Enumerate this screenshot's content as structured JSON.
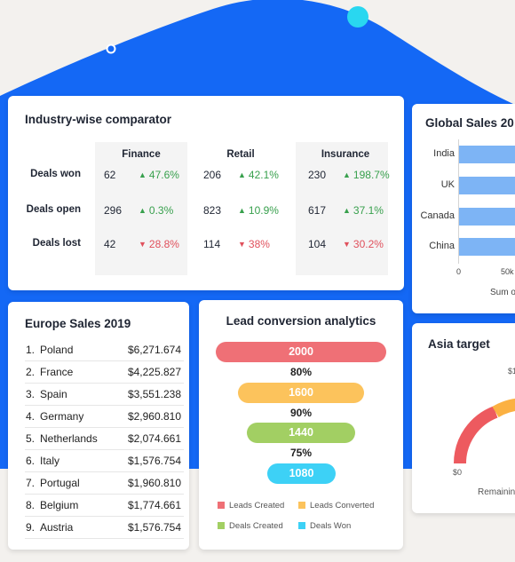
{
  "colors": {
    "wave": "#1468f5",
    "accent_dot": "#29d7f0",
    "up": "#38a04d",
    "down": "#e0505c",
    "bar": "#7db4f5",
    "leads_created": "#ef7076",
    "leads_converted": "#fcc35c",
    "deals_created": "#a2cf63",
    "deals_won": "#3dd1f6",
    "gauge_done": "#ed5a5f",
    "gauge_rest": "#fbb142"
  },
  "industry": {
    "title": "Industry-wise comparator",
    "columns": [
      "Finance",
      "Retail",
      "Insurance"
    ],
    "rows": [
      {
        "label": "Deals won",
        "cells": [
          {
            "value": "62",
            "change": "47.6%",
            "dir": "up",
            "arrow": "▲"
          },
          {
            "value": "206",
            "change": "42.1%",
            "dir": "up",
            "arrow": "▲"
          },
          {
            "value": "230",
            "change": "198.7%",
            "dir": "up",
            "arrow": "▲"
          }
        ]
      },
      {
        "label": "Deals open",
        "cells": [
          {
            "value": "296",
            "change": "0.3%",
            "dir": "up",
            "arrow": "▲"
          },
          {
            "value": "823",
            "change": "10.9%",
            "dir": "up",
            "arrow": "▲"
          },
          {
            "value": "617",
            "change": "37.1%",
            "dir": "up",
            "arrow": "▲"
          }
        ]
      },
      {
        "label": "Deals lost",
        "cells": [
          {
            "value": "42",
            "change": "28.8%",
            "dir": "down",
            "arrow": "▼"
          },
          {
            "value": "114",
            "change": "38%",
            "dir": "down",
            "arrow": "▼"
          },
          {
            "value": "104",
            "change": "30.2%",
            "dir": "down",
            "arrow": "▼"
          }
        ]
      }
    ]
  },
  "global_sales": {
    "title": "Global Sales 20",
    "countries": [
      "India",
      "UK",
      "Canada",
      "China"
    ],
    "ticks": [
      "0",
      "50k"
    ],
    "xlabel": "Sum o"
  },
  "europe": {
    "title": "Europe Sales 2019",
    "rows": [
      {
        "rank": "1.",
        "name": "Poland",
        "value": "$6,271.674"
      },
      {
        "rank": "2.",
        "name": "France",
        "value": "$4,225.827"
      },
      {
        "rank": "3.",
        "name": "Spain",
        "value": "$3,551.238"
      },
      {
        "rank": "4.",
        "name": "Germany",
        "value": "$2,960.810"
      },
      {
        "rank": "5.",
        "name": "Netherlands",
        "value": "$2,074.661"
      },
      {
        "rank": "6.",
        "name": "Italy",
        "value": "$1,576.754"
      },
      {
        "rank": "7.",
        "name": "Portugal",
        "value": "$1,960.810"
      },
      {
        "rank": "8.",
        "name": "Belgium",
        "value": "$1,774.661"
      },
      {
        "rank": "9.",
        "name": "Austria",
        "value": "$1,576.754"
      }
    ]
  },
  "lead": {
    "title": "Lead conversion analytics",
    "stages": [
      {
        "value": "2000",
        "amount": 2000,
        "color": "#ef7076"
      },
      {
        "value": "1600",
        "amount": 1600,
        "color": "#fcc35c"
      },
      {
        "value": "1440",
        "amount": 1440,
        "color": "#a2cf63"
      },
      {
        "value": "1080",
        "amount": 1080,
        "color": "#3dd1f6"
      }
    ],
    "rates": [
      "80%",
      "90%",
      "75%"
    ],
    "legend": [
      {
        "label": "Leads Created",
        "color": "#ef7076"
      },
      {
        "label": "Leads Converted",
        "color": "#fcc35c"
      },
      {
        "label": "Deals Created",
        "color": "#a2cf63"
      },
      {
        "label": "Deals Won",
        "color": "#3dd1f6"
      }
    ]
  },
  "asia": {
    "title": "Asia target",
    "min_label": "$0",
    "top_label": "$1",
    "remaining_label": "Remainin"
  }
}
